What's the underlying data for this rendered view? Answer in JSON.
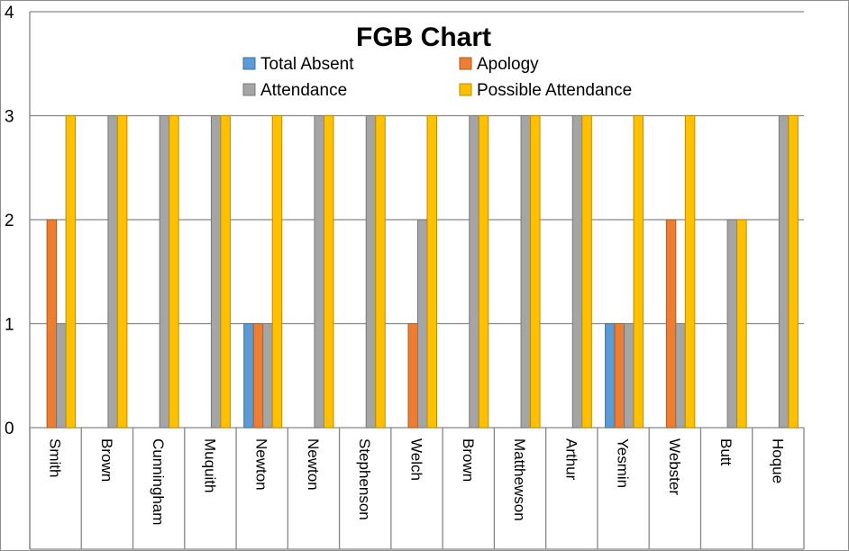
{
  "chart_data": {
    "type": "bar",
    "title": "FGB Chart",
    "xlabel": "",
    "ylabel": "",
    "ylim": [
      0,
      4
    ],
    "yticks": [
      0,
      1,
      2,
      3,
      4
    ],
    "grid": true,
    "legend_position": "top-center",
    "categories": [
      "Smith",
      "Brown",
      "Cunningham",
      "Muquith",
      "Newton",
      "Newton",
      "Stephenson",
      "Welch",
      "Brown",
      "Matthewson",
      "Arthur",
      "Yesmin",
      "Webster",
      "Butt",
      "Hoque"
    ],
    "series": [
      {
        "name": "Total Absent",
        "color": "#5b9bd5",
        "values": [
          0,
          0,
          0,
          0,
          1,
          0,
          0,
          0,
          0,
          0,
          0,
          1,
          0,
          0,
          0
        ]
      },
      {
        "name": "Apology",
        "color": "#ed7d31",
        "values": [
          2,
          0,
          0,
          0,
          1,
          0,
          0,
          1,
          0,
          0,
          0,
          1,
          2,
          0,
          0
        ]
      },
      {
        "name": "Attendance",
        "color": "#a5a5a5",
        "values": [
          1,
          3,
          3,
          3,
          1,
          3,
          3,
          2,
          3,
          3,
          3,
          1,
          1,
          2,
          3
        ]
      },
      {
        "name": "Possible Attendance",
        "color": "#ffc000",
        "values": [
          3,
          3,
          3,
          3,
          3,
          3,
          3,
          3,
          3,
          3,
          3,
          3,
          3,
          2,
          3
        ]
      }
    ]
  }
}
